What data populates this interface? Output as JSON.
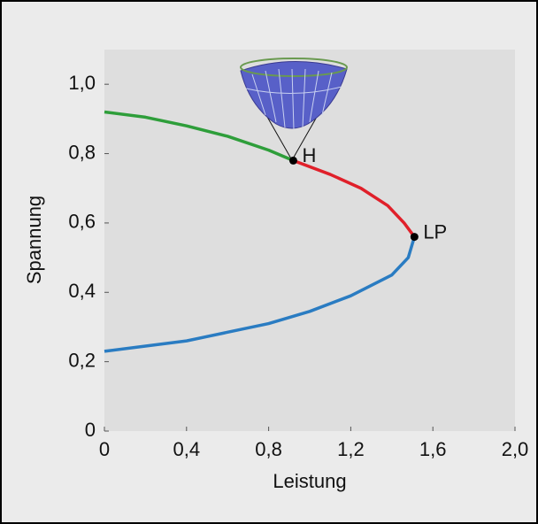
{
  "chart_data": {
    "type": "line",
    "x_label": "Leistung",
    "y_label": "Spannung",
    "xlim": [
      0,
      2.0
    ],
    "ylim": [
      0,
      1.1
    ],
    "xticks": [
      0,
      {
        "value": 0.4,
        "label": "0,4"
      },
      {
        "value": 0.8,
        "label": "0,8"
      },
      {
        "value": 1.2,
        "label": "1,2"
      },
      {
        "value": 1.6,
        "label": "1,6"
      },
      {
        "value": 2.0,
        "label": "2,0"
      }
    ],
    "yticks": [
      0,
      {
        "value": 0.2,
        "label": "0,2"
      },
      {
        "value": 0.4,
        "label": "0,4"
      },
      {
        "value": 0.6,
        "label": "0,6"
      },
      {
        "value": 0.8,
        "label": "0,8"
      },
      {
        "value": 1.0,
        "label": "1,0"
      }
    ],
    "series": [
      {
        "color": "#2e9e3a",
        "x": [
          0,
          0.2,
          0.4,
          0.6,
          0.8,
          0.92
        ],
        "values": [
          0.92,
          0.905,
          0.88,
          0.85,
          0.81,
          0.78
        ]
      },
      {
        "color": "#e0202a",
        "x": [
          0.92,
          1.1,
          1.25,
          1.38,
          1.46,
          1.51
        ],
        "values": [
          0.78,
          0.74,
          0.7,
          0.65,
          0.6,
          0.56
        ]
      },
      {
        "color": "#2a7cc2",
        "x": [
          1.51,
          1.48,
          1.4,
          1.2,
          1.0,
          0.8,
          0.6,
          0.4,
          0.2,
          0
        ],
        "values": [
          0.56,
          0.5,
          0.45,
          0.39,
          0.345,
          0.31,
          0.285,
          0.26,
          0.245,
          0.23
        ]
      }
    ],
    "points": [
      {
        "label": "H",
        "x": 0.92,
        "y": 0.78
      },
      {
        "label": "LP",
        "x": 1.51,
        "y": 0.56
      }
    ]
  }
}
